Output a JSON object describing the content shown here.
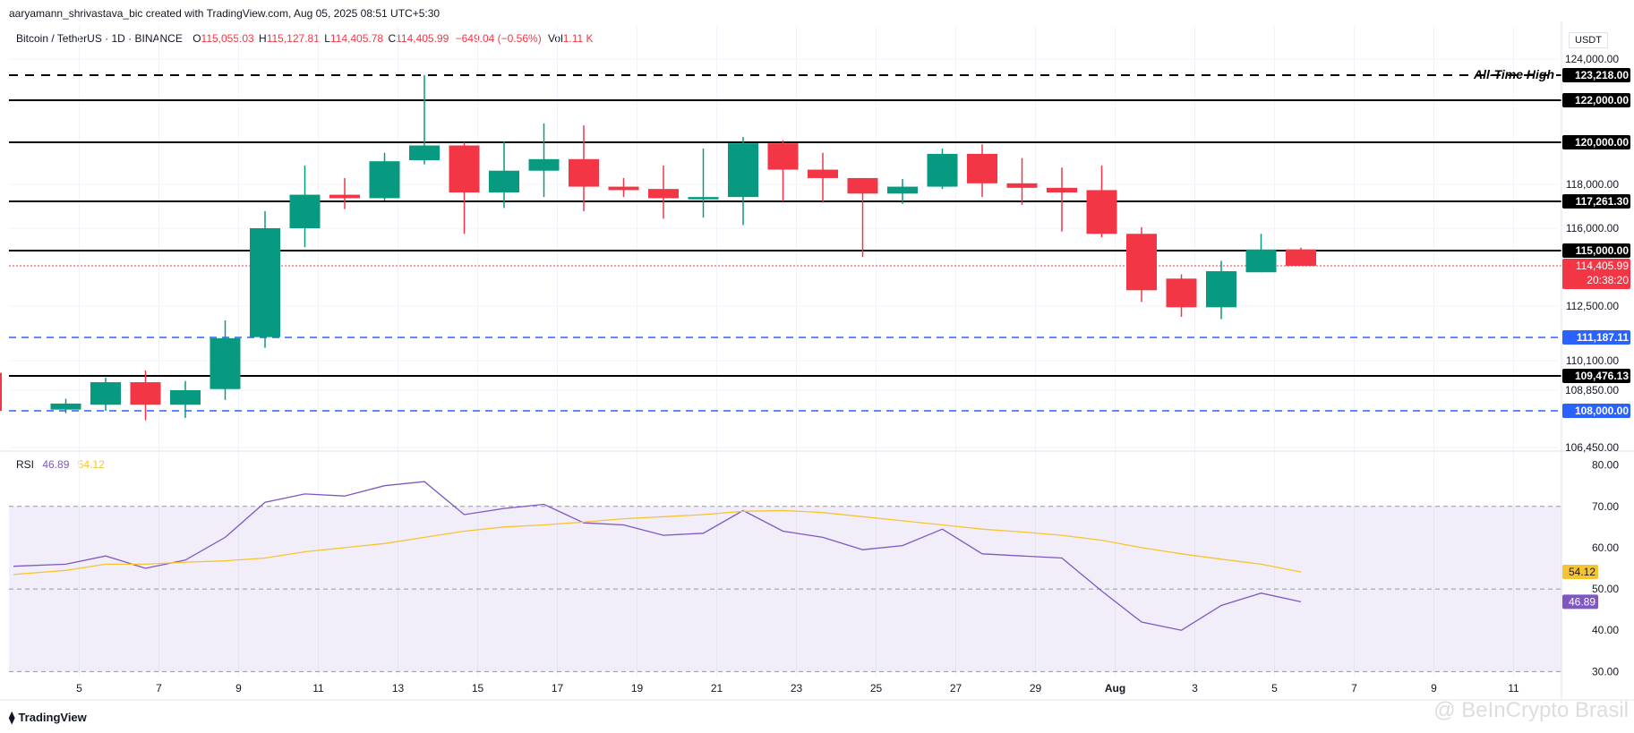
{
  "header": {
    "credit": "aaryamann_shrivastava_bic created with TradingView.com, Aug 05, 2025 08:51 UTC+5:30",
    "symbol": "Bitcoin / TetherUS · 1D · BINANCE",
    "o_label": "O",
    "o_value": "115,055.03",
    "h_label": "H",
    "h_value": "115,127.81",
    "l_label": "L",
    "l_value": "114,405.78",
    "c_label": "C",
    "c_value": "114,405.99",
    "change": "−649.04 (−0.56%)",
    "vol_label": "Vol",
    "vol_value": "1.11 K",
    "currency": "USDT"
  },
  "rsi_header": {
    "label": "RSI",
    "rsi_value": "46.89",
    "ma_value": "54.12"
  },
  "footer": {
    "logo_text": "TradingView",
    "watermark": "@ BeInCrypto Brasil"
  },
  "colors": {
    "up": "#089981",
    "down": "#f23645",
    "rsi": "#7e57c2",
    "rsi_ma": "#f7c431",
    "support": "#2962ff"
  },
  "chart_data": [
    {
      "type": "candlestick",
      "title": "Bitcoin / TetherUS · 1D · BINANCE",
      "x_tick_labels": [
        "5",
        "7",
        "9",
        "11",
        "13",
        "15",
        "17",
        "19",
        "21",
        "23",
        "25",
        "27",
        "29",
        "Aug",
        "3",
        "5",
        "7",
        "9",
        "11"
      ],
      "y_tick_labels": [
        "124,000.00",
        "118,000.00",
        "116,000.00",
        "112,500.00",
        "110,100.00",
        "108,850.00",
        "106,450.00"
      ],
      "y_ticks": [
        124000,
        118000,
        116000,
        112500,
        110100,
        108850,
        106450
      ],
      "price_axis_breaks": [
        {
          "price": 124000,
          "axis": 124000
        },
        {
          "price": 123218,
          "axis": 123218
        },
        {
          "price": 122000,
          "axis": 122000
        },
        {
          "price": 120000,
          "axis": 120000
        },
        {
          "price": 118000,
          "axis": 118000
        },
        {
          "price": 117261.3,
          "axis": 117261.3
        },
        {
          "price": 116000,
          "axis": 116000
        },
        {
          "price": 115000,
          "axis": 115000
        },
        {
          "price": 112500,
          "axis": 112500
        },
        {
          "price": 111187.11,
          "axis": 111187.11
        },
        {
          "price": 110100,
          "axis": 110100
        },
        {
          "price": 109476.13,
          "axis": 109476.13
        },
        {
          "price": 108850,
          "axis": 108850
        },
        {
          "price": 108000,
          "axis": 108000
        },
        {
          "price": 106450,
          "axis": 106450
        }
      ],
      "candles": [
        {
          "d": "Jul 4",
          "o": 109600,
          "h": 109600,
          "l": 108000,
          "c": 108000
        },
        {
          "d": "Jul 5",
          "o": 108050,
          "h": 108500,
          "l": 107900,
          "c": 108300
        },
        {
          "d": "Jul 6",
          "o": 108250,
          "h": 109400,
          "l": 108000,
          "c": 109200
        },
        {
          "d": "Jul 7",
          "o": 109200,
          "h": 109700,
          "l": 107600,
          "c": 108250
        },
        {
          "d": "Jul 8",
          "o": 108250,
          "h": 109250,
          "l": 107700,
          "c": 108850
        },
        {
          "d": "Jul 9",
          "o": 108900,
          "h": 111900,
          "l": 108450,
          "c": 111150
        },
        {
          "d": "Jul 10",
          "o": 111200,
          "h": 116800,
          "l": 110700,
          "c": 116000
        },
        {
          "d": "Jul 11",
          "o": 116000,
          "h": 118900,
          "l": 115150,
          "c": 117550
        },
        {
          "d": "Jul 12",
          "o": 117550,
          "h": 118300,
          "l": 116900,
          "c": 117400
        },
        {
          "d": "Jul 13",
          "o": 117400,
          "h": 119500,
          "l": 117300,
          "c": 119100
        },
        {
          "d": "Jul 14",
          "o": 119150,
          "h": 123218,
          "l": 118950,
          "c": 119850
        },
        {
          "d": "Jul 15",
          "o": 119850,
          "h": 120000,
          "l": 115750,
          "c": 117650
        },
        {
          "d": "Jul 16",
          "o": 117650,
          "h": 120050,
          "l": 116950,
          "c": 118650
        },
        {
          "d": "Jul 17",
          "o": 118650,
          "h": 120900,
          "l": 117450,
          "c": 119200
        },
        {
          "d": "Jul 18",
          "o": 119200,
          "h": 120800,
          "l": 116800,
          "c": 117900
        },
        {
          "d": "Jul 19",
          "o": 117900,
          "h": 118300,
          "l": 117450,
          "c": 117750
        },
        {
          "d": "Jul 20",
          "o": 117800,
          "h": 118900,
          "l": 116450,
          "c": 117400
        },
        {
          "d": "Jul 21",
          "o": 117350,
          "h": 119700,
          "l": 116500,
          "c": 117450
        },
        {
          "d": "Jul 22",
          "o": 117450,
          "h": 120250,
          "l": 116150,
          "c": 119950
        },
        {
          "d": "Jul 23",
          "o": 119950,
          "h": 120100,
          "l": 117250,
          "c": 118700
        },
        {
          "d": "Jul 24",
          "o": 118700,
          "h": 119500,
          "l": 117200,
          "c": 118300
        },
        {
          "d": "Jul 25",
          "o": 118300,
          "h": 118300,
          "l": 114750,
          "c": 117600
        },
        {
          "d": "Jul 26",
          "o": 117600,
          "h": 118250,
          "l": 117150,
          "c": 117900
        },
        {
          "d": "Jul 27",
          "o": 117900,
          "h": 119700,
          "l": 117800,
          "c": 119450
        },
        {
          "d": "Jul 28",
          "o": 119450,
          "h": 119900,
          "l": 117450,
          "c": 118050
        },
        {
          "d": "Jul 29",
          "o": 118050,
          "h": 119250,
          "l": 117100,
          "c": 117850
        },
        {
          "d": "Jul 30",
          "o": 117850,
          "h": 118800,
          "l": 115850,
          "c": 117650
        },
        {
          "d": "Jul 31",
          "o": 117750,
          "h": 118900,
          "l": 115600,
          "c": 115750
        },
        {
          "d": "Aug 1",
          "o": 115750,
          "h": 116050,
          "l": 112700,
          "c": 113250
        },
        {
          "d": "Aug 2",
          "o": 113800,
          "h": 114000,
          "l": 112050,
          "c": 112450
        },
        {
          "d": "Aug 3",
          "o": 112450,
          "h": 114600,
          "l": 111950,
          "c": 114150
        },
        {
          "d": "Aug 4",
          "o": 114100,
          "h": 115750,
          "l": 114100,
          "c": 115050
        },
        {
          "d": "Aug 5",
          "o": 115055.03,
          "h": 115127.81,
          "l": 114405.78,
          "c": 114405.99
        }
      ],
      "levels": [
        {
          "value": 123218,
          "label": "123,218.00",
          "style": "dashed",
          "color": "#000000",
          "note": "All-Time High"
        },
        {
          "value": 122000,
          "label": "122,000.00",
          "style": "solid",
          "color": "#000000"
        },
        {
          "value": 120000,
          "label": "120,000.00",
          "style": "solid",
          "color": "#000000"
        },
        {
          "value": 117261.3,
          "label": "117,261.30",
          "style": "solid",
          "color": "#000000"
        },
        {
          "value": 115000,
          "label": "115,000.00",
          "style": "solid",
          "color": "#000000"
        },
        {
          "value": 111187.11,
          "label": "111,187.11",
          "style": "dashed",
          "color": "#2962ff"
        },
        {
          "value": 109476.13,
          "label": "109,476.13",
          "style": "solid",
          "color": "#000000"
        },
        {
          "value": 108000,
          "label": "108,000.00",
          "style": "dashed",
          "color": "#2962ff"
        }
      ],
      "last_price": {
        "value": 114405.99,
        "label": "114,405.99",
        "countdown": "20:38:20"
      }
    },
    {
      "type": "line",
      "title": "RSI",
      "y_tick_labels": [
        "80.00",
        "70.00",
        "60.00",
        "50.00",
        "40.00",
        "30.00"
      ],
      "y_ticks": [
        80,
        70,
        60,
        50,
        40,
        30
      ],
      "ylim": [
        29,
        81
      ],
      "bands": {
        "upper": 70,
        "middle": 50,
        "lower": 30
      },
      "series": [
        {
          "name": "RSI",
          "values": [
            55.5,
            56,
            58,
            55,
            57,
            62.5,
            71,
            73,
            72.5,
            75,
            76,
            68,
            69.5,
            70.5,
            66,
            65.5,
            63,
            63.5,
            69,
            64,
            62.5,
            59.5,
            60.5,
            64.5,
            58.5,
            58,
            57.5,
            49.5,
            42,
            40,
            46,
            49,
            46.89
          ]
        },
        {
          "name": "RSI MA",
          "values": [
            53.5,
            54.5,
            56,
            56,
            56.5,
            56.8,
            57.5,
            59,
            60,
            61,
            62.5,
            64,
            65,
            65.5,
            66.2,
            67,
            67.5,
            68,
            68.8,
            69,
            68.5,
            67.5,
            66.5,
            65.5,
            64.5,
            63.8,
            63,
            61.8,
            60,
            58.5,
            57.2,
            56,
            54.12
          ]
        }
      ],
      "value_labels": [
        {
          "label": "54.12",
          "series": "RSI MA"
        },
        {
          "label": "46.89",
          "series": "RSI"
        }
      ]
    }
  ]
}
